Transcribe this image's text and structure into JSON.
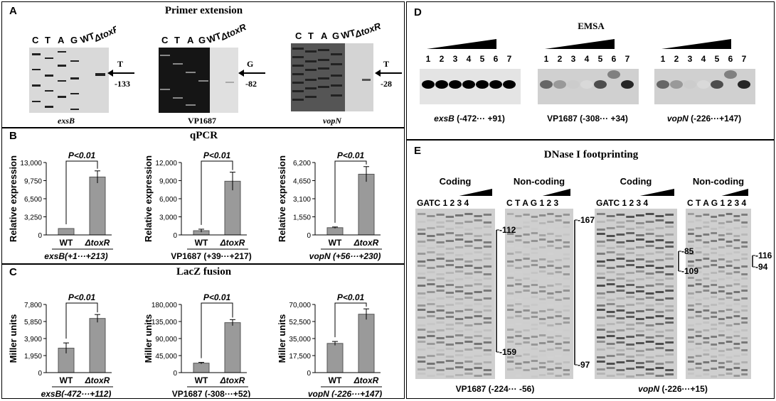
{
  "panelA": {
    "label": "A",
    "title": "Primer extension",
    "lanes": [
      "C",
      "T",
      "A",
      "G",
      "WT",
      "ΔtoxR"
    ],
    "gels": [
      {
        "caption": "exsB",
        "italic": true,
        "base": "T",
        "pos": "-133"
      },
      {
        "caption": "VP1687",
        "italic": false,
        "base": "G",
        "pos": "-82"
      },
      {
        "caption": "vopN",
        "italic": true,
        "base": "T",
        "pos": "-28"
      }
    ]
  },
  "panelB": {
    "label": "B",
    "title": "qPCR",
    "ylabel": "Relative expression",
    "pval": "P<0.01",
    "xcats": [
      "WT",
      "ΔtoxR"
    ]
  },
  "panelC": {
    "label": "C",
    "title": "LacZ fusion",
    "ylabel": "Miller units",
    "pval": "P<0.01",
    "xcats": [
      "WT",
      "ΔtoxR"
    ]
  },
  "panelD": {
    "label": "D",
    "title": "EMSA",
    "lanes": [
      "1",
      "2",
      "3",
      "4",
      "5",
      "6",
      "7"
    ],
    "captions": [
      {
        "gene": "exsB",
        "italic": true,
        "range": "(-472··· +91)"
      },
      {
        "gene": "VP1687",
        "italic": false,
        "range": "(-308··· +34)"
      },
      {
        "gene": "vopN",
        "italic": true,
        "range": "(-226···+147)"
      }
    ]
  },
  "panelE": {
    "label": "E",
    "title": "DNase I footprinting",
    "strands": [
      "Coding",
      "Non-coding",
      "Coding",
      "Non-coding"
    ],
    "lanes": [
      "GATC 1 2 3 4",
      "C T A G 1 2 3",
      "GATC 1 2 3 4",
      "C T A G 1 2 3 4"
    ],
    "marks": {
      "vp_coding": [
        "-112",
        "-159"
      ],
      "vp_noncoding": [
        "-167",
        "-97"
      ],
      "vop_coding": [
        "-85",
        "-109"
      ],
      "vop_noncoding": [
        "-116",
        "-94"
      ]
    },
    "captions": [
      {
        "gene": "VP1687",
        "italic": false,
        "range": "(-224··· -56)"
      },
      {
        "gene": "vopN",
        "italic": true,
        "range": "(-226···+15)"
      }
    ]
  },
  "chart_data": [
    {
      "type": "bar",
      "panel": "B",
      "categories": [
        "WT",
        "ΔtoxR"
      ],
      "values": [
        1150,
        10400
      ],
      "errors": [
        0,
        1100
      ],
      "ylim": [
        0,
        13000
      ],
      "yticks": [
        "0",
        "3,250",
        "6,500",
        "9,750",
        "13,000"
      ],
      "ylabel": "Relative expression",
      "xlabel": "exsB(+1···+213)",
      "annotation": "P<0.01"
    },
    {
      "type": "bar",
      "panel": "B",
      "categories": [
        "WT",
        "ΔtoxR"
      ],
      "values": [
        700,
        8900
      ],
      "errors": [
        250,
        1500
      ],
      "ylim": [
        0,
        12000
      ],
      "yticks": [
        "0",
        "3,000",
        "6,000",
        "9,000",
        "12,000"
      ],
      "ylabel": "Relative expression",
      "xlabel": "VP1687 (+39···+217)",
      "annotation": "P<0.01"
    },
    {
      "type": "bar",
      "panel": "B",
      "categories": [
        "WT",
        "ΔtoxR"
      ],
      "values": [
        620,
        5200
      ],
      "errors": [
        60,
        650
      ],
      "ylim": [
        0,
        6200
      ],
      "yticks": [
        "0",
        "1,550",
        "3,100",
        "4,650",
        "6,200"
      ],
      "ylabel": "Relative expression",
      "xlabel": "vopN (+56···+230)",
      "annotation": "P<0.01"
    },
    {
      "type": "bar",
      "panel": "C",
      "categories": [
        "WT",
        "ΔtoxR"
      ],
      "values": [
        2800,
        6200
      ],
      "errors": [
        600,
        450
      ],
      "ylim": [
        0,
        7800
      ],
      "yticks": [
        "0",
        "1,950",
        "3,900",
        "5,850",
        "7,800"
      ],
      "ylabel": "Miller units",
      "xlabel": "exsB(-472···+112)",
      "annotation": "P<0.01"
    },
    {
      "type": "bar",
      "panel": "C",
      "categories": [
        "WT",
        "ΔtoxR"
      ],
      "values": [
        25000,
        132000
      ],
      "errors": [
        2000,
        8000
      ],
      "ylim": [
        0,
        180000
      ],
      "yticks": [
        "0",
        "45,000",
        "90,000",
        "135,000",
        "180,000"
      ],
      "ylabel": "Miller units",
      "xlabel": "VP1687 (-308···+52)",
      "annotation": "P<0.01"
    },
    {
      "type": "bar",
      "panel": "C",
      "categories": [
        "WT",
        "ΔtoxR"
      ],
      "values": [
        30000,
        60000
      ],
      "errors": [
        2000,
        5500
      ],
      "ylim": [
        0,
        70000
      ],
      "yticks": [
        "0",
        "17,500",
        "35,000",
        "52,500",
        "70,000"
      ],
      "ylabel": "Miller units",
      "xlabel": "vopN (-226···+147)",
      "annotation": "P<0.01"
    }
  ]
}
